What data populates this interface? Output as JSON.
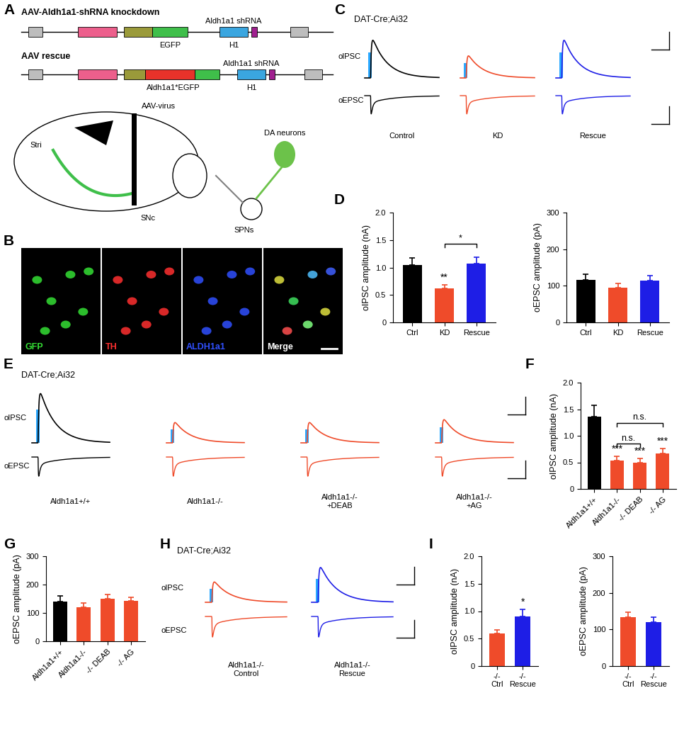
{
  "panel_labels": [
    "A",
    "B",
    "C",
    "D",
    "E",
    "F",
    "G",
    "H",
    "I"
  ],
  "schematic": {
    "constructs": [
      {
        "title": "AAV-Aldh1a1-shRNA knockdown",
        "insert": "Aldh1a1 shRNA",
        "parts": [
          "EGFP",
          "H1"
        ]
      },
      {
        "title": "AAV rescue",
        "insert": "Aldh1a1 shRNA",
        "parts": [
          "Aldh1a1*EGFP",
          "H1"
        ]
      }
    ],
    "injection": "AAV-virus",
    "regions": [
      "Stri",
      "SNc"
    ],
    "cells": [
      "DA neurons",
      "SPNs"
    ]
  },
  "micrograph": {
    "channels": [
      "GFP",
      "TH",
      "ALDH1a1",
      "Merge"
    ]
  },
  "recordings": [
    {
      "line": "DAT-Cre;Ai32",
      "rows": [
        "oIPSC",
        "oEPSC"
      ],
      "conditions": [
        "Control",
        "KD",
        "Rescue"
      ],
      "colors": [
        "#000000",
        "#ef4b2a",
        "#1e1ee6"
      ]
    },
    {
      "line": "DAT-Cre;Ai32",
      "rows": [
        "oIPSC",
        "oEPSC"
      ],
      "conditions": [
        "Aldh1a1+/+",
        "Aldh1a1-/-",
        "Aldh1a1-/-\n+DEAB",
        "Aldh1a1-/-\n+AG"
      ],
      "colors": [
        "#000000",
        "#ef4b2a",
        "#ef4b2a",
        "#ef4b2a"
      ]
    },
    {
      "line": "DAT-Cre;Ai32",
      "rows": [
        "oIPSC",
        "oEPSC"
      ],
      "conditions": [
        "Aldh1a1-/-\nControl",
        "Aldh1a1-/-\nRescue"
      ],
      "colors": [
        "#ef4b2a",
        "#1e1ee6"
      ]
    }
  ],
  "chart_data": [
    {
      "type": "bar",
      "y_label": "oIPSC amplitude (nA)",
      "categories": [
        "Ctrl",
        "KD",
        "Rescue"
      ],
      "values": [
        1.05,
        0.62,
        1.07
      ],
      "errors": [
        0.12,
        0.07,
        0.12
      ],
      "colors": [
        "#000000",
        "#ef4b2a",
        "#1e1ee6"
      ],
      "ylim": [
        0,
        2
      ],
      "yticks": [
        0,
        0.5,
        {
          "value": 1,
          "label": "1.0"
        },
        1.5,
        {
          "value": 2,
          "label": "2.0"
        }
      ],
      "annotations": [
        {
          "text": "**",
          "category": "KD"
        },
        {
          "text": "*",
          "between": [
            "KD",
            "Rescue"
          ]
        }
      ]
    },
    {
      "type": "bar",
      "y_label": "oEPSC amplitude (pA)",
      "categories": [
        "Ctrl",
        "KD",
        "Rescue"
      ],
      "values": [
        117,
        95,
        114
      ],
      "errors": [
        14,
        12,
        13
      ],
      "colors": [
        "#000000",
        "#ef4b2a",
        "#1e1ee6"
      ],
      "ylim": [
        0,
        300
      ],
      "yticks": [
        0,
        100,
        200,
        300
      ],
      "annotations": []
    },
    {
      "type": "bar",
      "y_label": "oIPSC amplitude (nA)",
      "categories": [
        "Aldh1a1+/+",
        "Aldh1a1-/-",
        "-/- DEAB",
        "-/- AG"
      ],
      "values": [
        1.36,
        0.54,
        0.5,
        0.67
      ],
      "errors": [
        0.22,
        0.07,
        0.08,
        0.09
      ],
      "colors": [
        "#000000",
        "#ef4b2a",
        "#ef4b2a",
        "#ef4b2a"
      ],
      "ylim": [
        0,
        2
      ],
      "yticks": [
        0,
        0.5,
        {
          "value": 1,
          "label": "1.0"
        },
        1.5,
        {
          "value": 2,
          "label": "2.0"
        }
      ],
      "annotations": [
        {
          "text": "***",
          "category": "Aldh1a1-/-"
        },
        {
          "text": "***",
          "category": "-/- DEAB"
        },
        {
          "text": "***",
          "category": "-/- AG"
        },
        {
          "text": "n.s.",
          "between": [
            "Aldh1a1-/-",
            "-/- DEAB"
          ]
        },
        {
          "text": "n.s.",
          "between": [
            "Aldh1a1-/-",
            "-/- AG"
          ]
        }
      ]
    },
    {
      "type": "bar",
      "y_label": "oEPSC amplitude (pA)",
      "categories": [
        "Aldh1a1+/+",
        "Aldh1a1-/-",
        "-/- DEAB",
        "-/- AG"
      ],
      "values": [
        139,
        121,
        151,
        143
      ],
      "errors": [
        22,
        14,
        15,
        13
      ],
      "colors": [
        "#000000",
        "#ef4b2a",
        "#ef4b2a",
        "#ef4b2a"
      ],
      "ylim": [
        0,
        300
      ],
      "yticks": [
        0,
        100,
        200,
        300
      ],
      "annotations": []
    },
    {
      "type": "bar",
      "y_label": "oIPSC amplitude (nA)",
      "categories": [
        "-/-\nCtrl",
        "-/-\nRescue"
      ],
      "values": [
        0.6,
        0.9
      ],
      "errors": [
        0.06,
        0.13
      ],
      "colors": [
        "#ef4b2a",
        "#1e1ee6"
      ],
      "ylim": [
        0,
        2
      ],
      "yticks": [
        0,
        0.5,
        {
          "value": 1,
          "label": "1.0"
        },
        1.5,
        {
          "value": 2,
          "label": "2.0"
        }
      ],
      "annotations": [
        {
          "text": "*",
          "category": "-/-\nRescue"
        }
      ]
    },
    {
      "type": "bar",
      "y_label": "oEPSC amplitude (pA)",
      "categories": [
        "-/-\nCtrl",
        "-/-\nRescue"
      ],
      "values": [
        133,
        120
      ],
      "errors": [
        14,
        14
      ],
      "colors": [
        "#ef4b2a",
        "#1e1ee6"
      ],
      "ylim": [
        0,
        300
      ],
      "yticks": [
        0,
        100,
        200,
        300
      ],
      "annotations": []
    }
  ]
}
